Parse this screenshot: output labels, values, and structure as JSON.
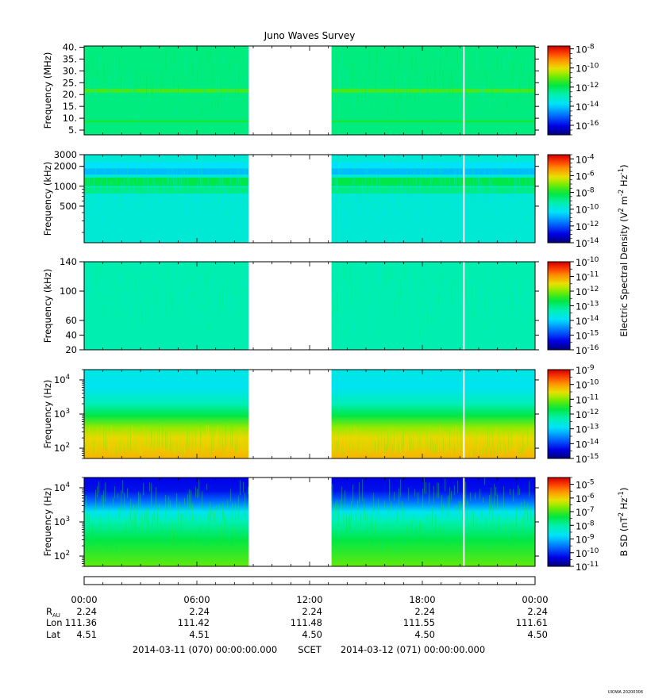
{
  "chart_data": {
    "type": "heatmap",
    "title": "Juno Waves Survey",
    "data_gaps": [
      {
        "start": "2014-03-11 08:45",
        "end": "2014-03-11 13:10",
        "fill": "white"
      },
      {
        "start": "2014-03-11 20:10",
        "end": "2014-03-11 20:15",
        "fill": "white"
      }
    ],
    "panels": [
      {
        "id": "hf-mhz",
        "ylabel": "Frequency (MHz)",
        "yscale": "linear",
        "ylim": [
          3,
          40.5
        ],
        "yticks": [
          {
            "value": 40,
            "label": "40."
          },
          {
            "value": 35,
            "label": "35."
          },
          {
            "value": 30,
            "label": "30."
          },
          {
            "value": 25,
            "label": "25."
          },
          {
            "value": 20,
            "label": "20."
          },
          {
            "value": 15,
            "label": "15."
          },
          {
            "value": 10,
            "label": "10."
          },
          {
            "value": 5,
            "label": "5."
          }
        ],
        "colorbar": {
          "log_min": -17,
          "log_max": -7.7,
          "ticks": [
            {
              "exp": "-8",
              "value": -8
            },
            {
              "exp": "-10",
              "value": -10
            },
            {
              "exp": "-12",
              "value": -12
            },
            {
              "exp": "-14",
              "value": -14
            },
            {
              "exp": "-16",
              "value": -16
            }
          ]
        },
        "background_level": 0.5,
        "bands": [
          {
            "from": 20.8,
            "to": 22.5,
            "level": 0.62
          },
          {
            "from": 8.3,
            "to": 9.1,
            "level": 0.58
          }
        ]
      },
      {
        "id": "hfwbr-khz",
        "ylabel": "Frequency (kHz)",
        "yscale": "log",
        "ylim": [
          140,
          3000
        ],
        "yticks": [
          {
            "value": 3000,
            "label": "3000"
          },
          {
            "value": 2000,
            "label": "2000"
          },
          {
            "value": 1000,
            "label": "1000"
          },
          {
            "value": 500,
            "label": "500"
          }
        ],
        "colorbar": {
          "log_min": -14,
          "log_max": -3.5,
          "ticks": [
            {
              "exp": "-4",
              "value": -4
            },
            {
              "exp": "-6",
              "value": -6
            },
            {
              "exp": "-8",
              "value": -8
            },
            {
              "exp": "-10",
              "value": -10
            },
            {
              "exp": "-12",
              "value": -12
            },
            {
              "exp": "-14",
              "value": -14
            }
          ]
        },
        "background_level": 0.4,
        "bands": [
          {
            "from": 1900,
            "to": 2300,
            "level": 0.34
          },
          {
            "from": 1500,
            "to": 1850,
            "level": 0.3
          },
          {
            "from": 1000,
            "to": 1350,
            "level": 0.55
          },
          {
            "from": 780,
            "to": 960,
            "level": 0.5
          }
        ]
      },
      {
        "id": "lfr-khz",
        "ylabel": "Frequency (kHz)",
        "yscale": "linear",
        "ylim": [
          20,
          140
        ],
        "yticks": [
          {
            "value": 140,
            "label": "140"
          },
          {
            "value": 100,
            "label": "100"
          },
          {
            "value": 60,
            "label": "60"
          },
          {
            "value": 40,
            "label": "40"
          },
          {
            "value": 20,
            "label": "20"
          }
        ],
        "colorbar": {
          "log_min": -16,
          "log_max": -10,
          "ticks": [
            {
              "exp": "-10",
              "value": -10
            },
            {
              "exp": "-11",
              "value": -11
            },
            {
              "exp": "-12",
              "value": -12
            },
            {
              "exp": "-13",
              "value": -13
            },
            {
              "exp": "-14",
              "value": -14
            },
            {
              "exp": "-15",
              "value": -15
            },
            {
              "exp": "-16",
              "value": -16
            }
          ]
        },
        "background_level": 0.45,
        "bands": []
      },
      {
        "id": "lfr-hz",
        "ylabel": "Frequency (Hz)",
        "yscale": "log",
        "ylim": [
          50,
          20000
        ],
        "yticks": [
          {
            "value": 10000,
            "label": "10",
            "exp": "4"
          },
          {
            "value": 1000,
            "label": "10",
            "exp": "3"
          },
          {
            "value": 100,
            "label": "10",
            "exp": "2"
          }
        ],
        "colorbar": {
          "log_min": -15,
          "log_max": -9,
          "ticks": [
            {
              "exp": "-9",
              "value": -9
            },
            {
              "exp": "-10",
              "value": -10
            },
            {
              "exp": "-11",
              "value": -11
            },
            {
              "exp": "-12",
              "value": -12
            },
            {
              "exp": "-13",
              "value": -13
            },
            {
              "exp": "-14",
              "value": -14
            },
            {
              "exp": "-15",
              "value": -15
            }
          ]
        },
        "gradient_by_freq": [
          {
            "freq": 20000,
            "level": 0.38
          },
          {
            "freq": 6000,
            "level": 0.36
          },
          {
            "freq": 2000,
            "level": 0.44
          },
          {
            "freq": 900,
            "level": 0.55
          },
          {
            "freq": 400,
            "level": 0.68
          },
          {
            "freq": 200,
            "level": 0.76
          },
          {
            "freq": 50,
            "level": 0.8
          }
        ]
      },
      {
        "id": "b-hz",
        "ylabel": "Frequency (Hz)",
        "yscale": "log",
        "ylim": [
          50,
          20000
        ],
        "yticks": [
          {
            "value": 10000,
            "label": "10",
            "exp": "4"
          },
          {
            "value": 1000,
            "label": "10",
            "exp": "3"
          },
          {
            "value": 100,
            "label": "10",
            "exp": "2"
          }
        ],
        "colorbar": {
          "log_min": -11,
          "log_max": -4.5,
          "ticks": [
            {
              "exp": "-5",
              "value": -5
            },
            {
              "exp": "-6",
              "value": -6
            },
            {
              "exp": "-7",
              "value": -7
            },
            {
              "exp": "-8",
              "value": -8
            },
            {
              "exp": "-9",
              "value": -9
            },
            {
              "exp": "-10",
              "value": -10
            },
            {
              "exp": "-11",
              "value": -11
            }
          ]
        },
        "gradient_by_freq": [
          {
            "freq": 20000,
            "level": 0.1
          },
          {
            "freq": 8000,
            "level": 0.12
          },
          {
            "freq": 4000,
            "level": 0.22
          },
          {
            "freq": 2000,
            "level": 0.36
          },
          {
            "freq": 1000,
            "level": 0.45
          },
          {
            "freq": 300,
            "level": 0.55
          },
          {
            "freq": 50,
            "level": 0.64
          }
        ]
      }
    ],
    "x_axis": {
      "ticks": [
        "00:00",
        "06:00",
        "12:00",
        "18:00",
        "00:00"
      ],
      "rows": [
        {
          "label": "R",
          "sub": "AU",
          "values": [
            "2.24",
            "2.24",
            "2.24",
            "2.24",
            "2.24"
          ]
        },
        {
          "label": "Lon",
          "values": [
            "111.36",
            "111.42",
            "111.48",
            "111.55",
            "111.61"
          ]
        },
        {
          "label": "Lat",
          "values": [
            "4.51",
            "4.51",
            "4.50",
            "4.50",
            "4.50"
          ]
        }
      ],
      "date_start": "2014-03-11 (070) 00:00:00.000",
      "scet": "SCET",
      "date_end": "2014-03-12 (071) 00:00:00.000"
    },
    "colorbar_labels": {
      "electric_prefix": "Electric Spectral Density (V",
      "electric_sup1": "2",
      "electric_mid": " m",
      "electric_sup2": "-2",
      "electric_mid2": " Hz",
      "electric_sup3": "-1",
      "electric_suffix": ")",
      "bsd_prefix": "B SD (nT",
      "bsd_sup1": "2",
      "bsd_mid": " Hz",
      "bsd_sup2": "-1",
      "bsd_suffix": ")"
    },
    "footer_stamp": "UIOWA 20200306"
  }
}
